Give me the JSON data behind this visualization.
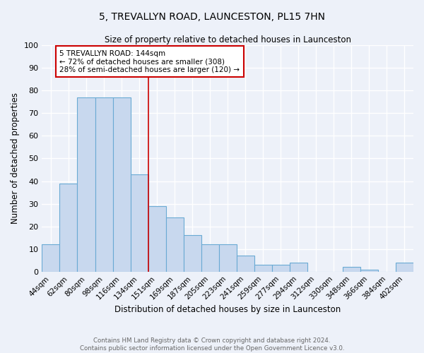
{
  "title": "5, TREVALLYN ROAD, LAUNCESTON, PL15 7HN",
  "subtitle": "Size of property relative to detached houses in Launceston",
  "xlabel": "Distribution of detached houses by size in Launceston",
  "ylabel": "Number of detached properties",
  "footer": "Contains HM Land Registry data © Crown copyright and database right 2024.\nContains public sector information licensed under the Open Government Licence v3.0.",
  "categories": [
    "44sqm",
    "62sqm",
    "80sqm",
    "98sqm",
    "116sqm",
    "134sqm",
    "151sqm",
    "169sqm",
    "187sqm",
    "205sqm",
    "223sqm",
    "241sqm",
    "259sqm",
    "277sqm",
    "294sqm",
    "312sqm",
    "330sqm",
    "348sqm",
    "366sqm",
    "384sqm",
    "402sqm"
  ],
  "values": [
    12,
    39,
    77,
    77,
    77,
    43,
    29,
    24,
    16,
    12,
    12,
    7,
    3,
    3,
    4,
    0,
    0,
    2,
    1,
    0,
    4
  ],
  "bar_color": "#c8d8ee",
  "bar_edge_color": "#6aaad4",
  "annotation_text": "5 TREVALLYN ROAD: 144sqm\n← 72% of detached houses are smaller (308)\n28% of semi-detached houses are larger (120) →",
  "annotation_box_color": "#ffffff",
  "annotation_box_edge_color": "#cc0000",
  "vline_color": "#cc0000",
  "vline_x_index": 5.5,
  "ylim": [
    0,
    100
  ],
  "background_color": "#edf1f9",
  "grid_color": "#ffffff"
}
